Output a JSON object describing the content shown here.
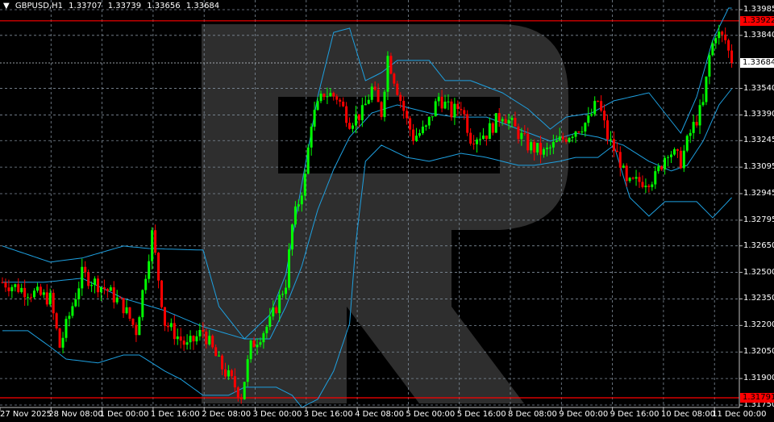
{
  "header": {
    "symbol": "GBPUSD,H1",
    "open": "1.33707",
    "high": "1.33739",
    "low": "1.33656",
    "close": "1.33684",
    "menu_icon": "triangle-down-icon"
  },
  "colors": {
    "background": "#000000",
    "bull": "#00ff00",
    "bear": "#ff0000",
    "bands": "#1ea0e0",
    "grid": "#7f8c99",
    "level_line": "#ff0000",
    "watermark": "#2e2e2e"
  },
  "price_axis": [
    "1.33985",
    "1.33840",
    "1.33540",
    "1.33390",
    "1.33245",
    "1.33095",
    "1.32945",
    "1.32795",
    "1.32650",
    "1.32500",
    "1.32350",
    "1.32200",
    "1.32050",
    "1.31900",
    "1.31750"
  ],
  "current_price": "1.33684",
  "levels": [
    "1.33922",
    "1.31791"
  ],
  "time_axis": [
    "27 Nov 2025",
    "28 Nov 08:00",
    "1 Dec 00:00",
    "1 Dec 16:00",
    "2 Dec 08:00",
    "3 Dec 00:00",
    "3 Dec 16:00",
    "4 Dec 08:00",
    "5 Dec 00:00",
    "5 Dec 16:00",
    "8 Dec 08:00",
    "9 Dec 00:00",
    "9 Dec 16:00",
    "10 Dec 08:00",
    "11 Dec 00:00"
  ],
  "chart_data": {
    "type": "candlestick",
    "timeframe": "H1",
    "ylim": [
      1.3175,
      1.33985
    ],
    "grid": true,
    "close_path": [
      [
        0,
        1.32444
      ],
      [
        15,
        1.3235
      ],
      [
        18,
        1.32079
      ],
      [
        25,
        1.32489
      ],
      [
        33,
        1.32398
      ],
      [
        38,
        1.32307
      ],
      [
        42,
        1.3217
      ],
      [
        47,
        1.32717
      ],
      [
        51,
        1.32216
      ],
      [
        58,
        1.32079
      ],
      [
        63,
        1.3217
      ],
      [
        68,
        1.31988
      ],
      [
        75,
        1.31805
      ],
      [
        78,
        1.32079
      ],
      [
        84,
        1.32216
      ],
      [
        89,
        1.32444
      ],
      [
        91,
        1.32763
      ],
      [
        95,
        1.33036
      ],
      [
        97,
        1.33356
      ],
      [
        101,
        1.33515
      ],
      [
        105,
        1.33493
      ],
      [
        109,
        1.33356
      ],
      [
        113,
        1.33401
      ],
      [
        116,
        1.33538
      ],
      [
        119,
        1.33401
      ],
      [
        121,
        1.33721
      ],
      [
        124,
        1.33538
      ],
      [
        127,
        1.33356
      ],
      [
        129,
        1.33265
      ],
      [
        133,
        1.3331
      ],
      [
        137,
        1.33493
      ],
      [
        141,
        1.33401
      ],
      [
        144,
        1.33447
      ],
      [
        147,
        1.33265
      ],
      [
        152,
        1.33287
      ],
      [
        157,
        1.33401
      ],
      [
        161,
        1.3331
      ],
      [
        165,
        1.33219
      ],
      [
        170,
        1.33173
      ],
      [
        175,
        1.33242
      ],
      [
        180,
        1.3331
      ],
      [
        184,
        1.33356
      ],
      [
        187,
        1.3347
      ],
      [
        190,
        1.33265
      ],
      [
        194,
        1.33128
      ],
      [
        196,
        1.32991
      ],
      [
        200,
        1.33014
      ],
      [
        205,
        1.33036
      ],
      [
        209,
        1.33196
      ],
      [
        213,
        1.33128
      ],
      [
        216,
        1.33287
      ],
      [
        220,
        1.33447
      ],
      [
        222,
        1.33721
      ],
      [
        224,
        1.33857
      ],
      [
        227,
        1.33812
      ],
      [
        229,
        1.33684
      ]
    ],
    "bollinger": {
      "upper": [
        [
          0,
          1.32649
        ],
        [
          15,
          1.32558
        ],
        [
          25,
          1.32581
        ],
        [
          38,
          1.32649
        ],
        [
          46,
          1.32635
        ],
        [
          63,
          1.32626
        ],
        [
          68,
          1.32307
        ],
        [
          76,
          1.32124
        ],
        [
          84,
          1.32261
        ],
        [
          89,
          1.32489
        ],
        [
          94,
          1.33
        ],
        [
          99,
          1.33493
        ],
        [
          104,
          1.33857
        ],
        [
          109,
          1.3388
        ],
        [
          114,
          1.33584
        ],
        [
          119,
          1.33629
        ],
        [
          124,
          1.33698
        ],
        [
          134,
          1.33698
        ],
        [
          139,
          1.33584
        ],
        [
          147,
          1.33584
        ],
        [
          157,
          1.33515
        ],
        [
          165,
          1.33424
        ],
        [
          172,
          1.3331
        ],
        [
          177,
          1.33378
        ],
        [
          185,
          1.33401
        ],
        [
          192,
          1.3347
        ],
        [
          203,
          1.33515
        ],
        [
          208,
          1.33401
        ],
        [
          213,
          1.33287
        ],
        [
          218,
          1.33493
        ],
        [
          223,
          1.33812
        ],
        [
          228,
          1.33994
        ]
      ],
      "middle": [
        [
          0,
          1.32444
        ],
        [
          13,
          1.32444
        ],
        [
          25,
          1.32467
        ],
        [
          38,
          1.32353
        ],
        [
          51,
          1.32284
        ],
        [
          63,
          1.32193
        ],
        [
          76,
          1.32124
        ],
        [
          84,
          1.32124
        ],
        [
          89,
          1.32307
        ],
        [
          94,
          1.32535
        ],
        [
          99,
          1.32854
        ],
        [
          104,
          1.33082
        ],
        [
          109,
          1.33265
        ],
        [
          116,
          1.33401
        ],
        [
          124,
          1.33447
        ],
        [
          134,
          1.33401
        ],
        [
          142,
          1.33378
        ],
        [
          152,
          1.33378
        ],
        [
          162,
          1.3331
        ],
        [
          172,
          1.33242
        ],
        [
          180,
          1.33287
        ],
        [
          187,
          1.33265
        ],
        [
          195,
          1.33219
        ],
        [
          203,
          1.33128
        ],
        [
          210,
          1.33073
        ],
        [
          215,
          1.33105
        ],
        [
          220,
          1.33242
        ],
        [
          225,
          1.33447
        ],
        [
          229,
          1.33538
        ]
      ],
      "lower": [
        [
          0,
          1.3217
        ],
        [
          8,
          1.3217
        ],
        [
          15,
          1.32079
        ],
        [
          20,
          1.3201
        ],
        [
          30,
          1.31988
        ],
        [
          38,
          1.32033
        ],
        [
          43,
          1.32033
        ],
        [
          51,
          1.31942
        ],
        [
          56,
          1.31896
        ],
        [
          63,
          1.31805
        ],
        [
          71,
          1.31805
        ],
        [
          76,
          1.31851
        ],
        [
          86,
          1.31851
        ],
        [
          91,
          1.31805
        ],
        [
          94,
          1.31737
        ],
        [
          99,
          1.31783
        ],
        [
          104,
          1.31942
        ],
        [
          109,
          1.3221
        ],
        [
          111,
          1.32672
        ],
        [
          114,
          1.33128
        ],
        [
          119,
          1.33219
        ],
        [
          127,
          1.3315
        ],
        [
          134,
          1.33128
        ],
        [
          144,
          1.33173
        ],
        [
          152,
          1.3315
        ],
        [
          162,
          1.33105
        ],
        [
          167,
          1.33105
        ],
        [
          175,
          1.33128
        ],
        [
          180,
          1.3315
        ],
        [
          187,
          1.3315
        ],
        [
          192,
          1.33219
        ],
        [
          197,
          1.32923
        ],
        [
          203,
          1.32818
        ],
        [
          208,
          1.329
        ],
        [
          218,
          1.329
        ],
        [
          223,
          1.32809
        ],
        [
          229,
          1.32923
        ]
      ]
    }
  }
}
